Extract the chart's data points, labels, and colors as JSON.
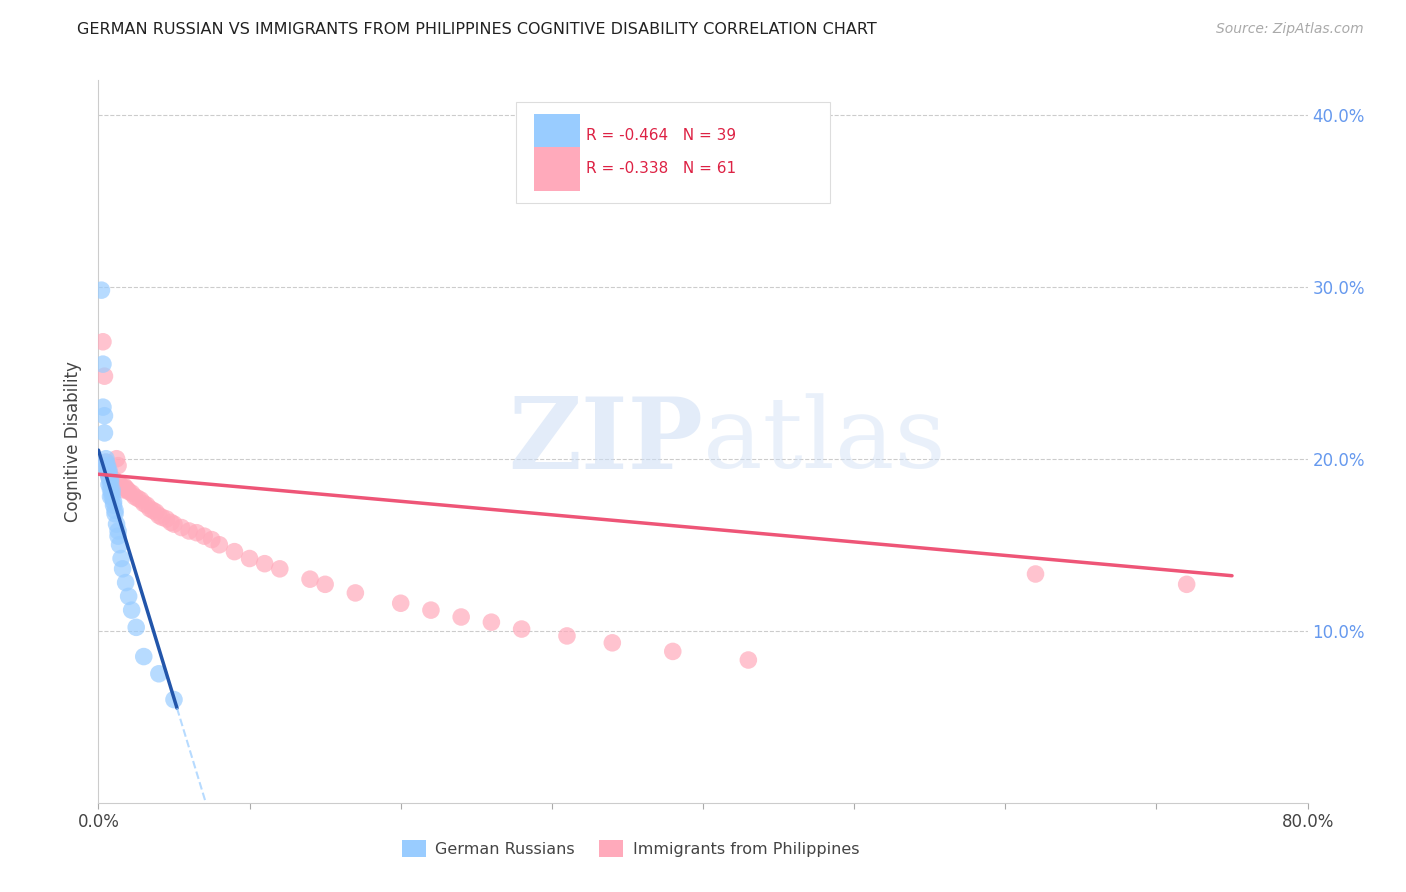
{
  "title": "GERMAN RUSSIAN VS IMMIGRANTS FROM PHILIPPINES COGNITIVE DISABILITY CORRELATION CHART",
  "source": "Source: ZipAtlas.com",
  "ylabel": "Cognitive Disability",
  "xlim": [
    0.0,
    0.8
  ],
  "ylim": [
    0.0,
    0.42
  ],
  "legend_label1": "German Russians",
  "legend_label2": "Immigrants from Philippines",
  "R1": "-0.464",
  "N1": "39",
  "R2": "-0.338",
  "N2": "61",
  "color_blue": "#99CCFF",
  "color_pink": "#FFAABB",
  "color_blue_line": "#2255AA",
  "color_pink_line": "#EE5577",
  "watermark_zip": "ZIP",
  "watermark_atlas": "atlas",
  "blue_x": [
    0.002,
    0.003,
    0.003,
    0.004,
    0.004,
    0.005,
    0.005,
    0.005,
    0.006,
    0.006,
    0.006,
    0.007,
    0.007,
    0.007,
    0.007,
    0.008,
    0.008,
    0.008,
    0.008,
    0.009,
    0.009,
    0.009,
    0.01,
    0.01,
    0.011,
    0.011,
    0.012,
    0.013,
    0.013,
    0.014,
    0.015,
    0.016,
    0.018,
    0.02,
    0.022,
    0.025,
    0.03,
    0.04,
    0.05
  ],
  "blue_y": [
    0.298,
    0.255,
    0.23,
    0.225,
    0.215,
    0.2,
    0.198,
    0.195,
    0.196,
    0.194,
    0.192,
    0.193,
    0.191,
    0.189,
    0.185,
    0.188,
    0.186,
    0.182,
    0.178,
    0.182,
    0.18,
    0.178,
    0.175,
    0.173,
    0.17,
    0.168,
    0.162,
    0.158,
    0.155,
    0.15,
    0.142,
    0.136,
    0.128,
    0.12,
    0.112,
    0.102,
    0.085,
    0.075,
    0.06
  ],
  "pink_x": [
    0.003,
    0.004,
    0.005,
    0.006,
    0.006,
    0.007,
    0.007,
    0.008,
    0.008,
    0.009,
    0.01,
    0.01,
    0.011,
    0.012,
    0.013,
    0.013,
    0.014,
    0.015,
    0.016,
    0.017,
    0.018,
    0.019,
    0.02,
    0.022,
    0.024,
    0.026,
    0.028,
    0.03,
    0.032,
    0.034,
    0.036,
    0.038,
    0.04,
    0.042,
    0.045,
    0.048,
    0.05,
    0.055,
    0.06,
    0.065,
    0.07,
    0.075,
    0.08,
    0.09,
    0.1,
    0.11,
    0.12,
    0.14,
    0.15,
    0.17,
    0.2,
    0.22,
    0.24,
    0.26,
    0.28,
    0.31,
    0.34,
    0.38,
    0.43,
    0.62,
    0.72
  ],
  "pink_y": [
    0.268,
    0.248,
    0.198,
    0.196,
    0.194,
    0.192,
    0.19,
    0.189,
    0.188,
    0.187,
    0.188,
    0.186,
    0.185,
    0.2,
    0.196,
    0.186,
    0.185,
    0.184,
    0.182,
    0.184,
    0.183,
    0.182,
    0.181,
    0.18,
    0.178,
    0.177,
    0.176,
    0.174,
    0.173,
    0.171,
    0.17,
    0.169,
    0.167,
    0.166,
    0.165,
    0.163,
    0.162,
    0.16,
    0.158,
    0.157,
    0.155,
    0.153,
    0.15,
    0.146,
    0.142,
    0.139,
    0.136,
    0.13,
    0.127,
    0.122,
    0.116,
    0.112,
    0.108,
    0.105,
    0.101,
    0.097,
    0.093,
    0.088,
    0.083,
    0.133,
    0.127
  ],
  "pink_line_x0": 0.0,
  "pink_line_y0": 0.191,
  "pink_line_x1": 0.75,
  "pink_line_y1": 0.132,
  "blue_line_x0": 0.0,
  "blue_line_y0": 0.205,
  "blue_line_x1": 0.052,
  "blue_line_y1": 0.055
}
